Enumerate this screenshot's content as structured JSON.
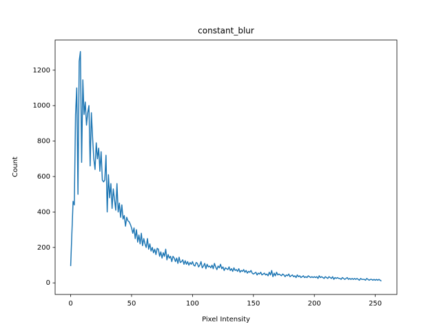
{
  "chart_data": {
    "type": "line",
    "title": "constant_blur",
    "x_label": "Pixel Intensity",
    "y_label": "Count",
    "xlim": [
      -12.75,
      267.75
    ],
    "ylim": [
      -65.25,
      1370.25
    ],
    "xticks": [
      0,
      50,
      100,
      150,
      200,
      250
    ],
    "yticks": [
      0,
      200,
      400,
      600,
      800,
      1000,
      1200
    ],
    "grid": false,
    "x": [
      0,
      1,
      2,
      3,
      4,
      5,
      6,
      7,
      8,
      9,
      10,
      11,
      12,
      13,
      14,
      15,
      16,
      17,
      18,
      19,
      20,
      21,
      22,
      23,
      24,
      25,
      26,
      27,
      28,
      29,
      30,
      31,
      32,
      33,
      34,
      35,
      36,
      37,
      38,
      39,
      40,
      41,
      42,
      43,
      44,
      45,
      46,
      47,
      48,
      49,
      50,
      51,
      52,
      53,
      54,
      55,
      56,
      57,
      58,
      59,
      60,
      61,
      62,
      63,
      64,
      65,
      66,
      67,
      68,
      69,
      70,
      71,
      72,
      73,
      74,
      75,
      76,
      77,
      78,
      79,
      80,
      81,
      82,
      83,
      84,
      85,
      86,
      87,
      88,
      89,
      90,
      91,
      92,
      93,
      94,
      95,
      96,
      97,
      98,
      99,
      100,
      101,
      102,
      103,
      104,
      105,
      106,
      107,
      108,
      109,
      110,
      111,
      112,
      113,
      114,
      115,
      116,
      117,
      118,
      119,
      120,
      121,
      122,
      123,
      124,
      125,
      126,
      127,
      128,
      129,
      130,
      131,
      132,
      133,
      134,
      135,
      136,
      137,
      138,
      139,
      140,
      141,
      142,
      143,
      144,
      145,
      146,
      147,
      148,
      149,
      150,
      151,
      152,
      153,
      154,
      155,
      156,
      157,
      158,
      159,
      160,
      161,
      162,
      163,
      164,
      165,
      166,
      167,
      168,
      169,
      170,
      171,
      172,
      173,
      174,
      175,
      176,
      177,
      178,
      179,
      180,
      181,
      182,
      183,
      184,
      185,
      186,
      187,
      188,
      189,
      190,
      191,
      192,
      193,
      194,
      195,
      196,
      197,
      198,
      199,
      200,
      201,
      202,
      203,
      204,
      205,
      206,
      207,
      208,
      209,
      210,
      211,
      212,
      213,
      214,
      215,
      216,
      217,
      218,
      219,
      220,
      221,
      222,
      223,
      224,
      225,
      226,
      227,
      228,
      229,
      230,
      231,
      232,
      233,
      234,
      235,
      236,
      237,
      238,
      239,
      240,
      241,
      242,
      243,
      244,
      245,
      246,
      247,
      248,
      249,
      250,
      251,
      252,
      253,
      254,
      255
    ],
    "series": [
      {
        "color": "#1f77b4",
        "values": [
          95,
          280,
          460,
          440,
          950,
          1100,
          500,
          1250,
          1305,
          680,
          1145,
          950,
          1020,
          890,
          960,
          1000,
          660,
          960,
          820,
          700,
          640,
          790,
          700,
          760,
          630,
          740,
          580,
          570,
          580,
          720,
          400,
          610,
          480,
          560,
          420,
          530,
          470,
          410,
          560,
          400,
          450,
          370,
          440,
          360,
          380,
          320,
          370,
          350,
          345,
          330,
          310,
          280,
          310,
          250,
          300,
          230,
          270,
          220,
          280,
          210,
          250,
          220,
          200,
          250,
          190,
          220,
          180,
          200,
          170,
          190,
          160,
          195,
          190,
          150,
          175,
          140,
          170,
          150,
          190,
          130,
          160,
          140,
          150,
          120,
          150,
          140,
          120,
          140,
          110,
          145,
          115,
          120,
          130,
          105,
          125,
          105,
          120,
          100,
          115,
          105,
          120,
          100,
          95,
          115,
          110,
          90,
          100,
          120,
          85,
          95,
          110,
          80,
          105,
          90,
          95,
          85,
          100,
          80,
          110,
          90,
          75,
          95,
          85,
          105,
          80,
          90,
          70,
          85,
          80,
          75,
          90,
          70,
          80,
          65,
          85,
          70,
          75,
          65,
          80,
          60,
          70,
          65,
          75,
          60,
          70,
          55,
          65,
          60,
          70,
          55,
          50,
          55,
          60,
          45,
          55,
          50,
          60,
          45,
          50,
          55,
          45,
          50,
          40,
          60,
          45,
          70,
          35,
          55,
          40,
          60,
          45,
          50,
          45,
          40,
          50,
          45,
          35,
          45,
          40,
          50,
          35,
          40,
          45,
          35,
          40,
          30,
          45,
          35,
          40,
          30,
          35,
          40,
          30,
          35,
          30,
          40,
          35,
          30,
          35,
          30,
          35,
          30,
          35,
          25,
          40,
          30,
          35,
          30,
          25,
          35,
          30,
          25,
          35,
          30,
          25,
          35,
          20,
          30,
          25,
          30,
          25,
          25,
          20,
          30,
          25,
          20,
          25,
          30,
          20,
          25,
          20,
          25,
          20,
          25,
          20,
          25,
          20,
          15,
          25,
          20,
          20,
          20,
          15,
          25,
          20,
          15,
          20,
          20,
          15,
          20,
          15,
          20,
          15,
          20,
          15,
          10
        ]
      }
    ]
  }
}
